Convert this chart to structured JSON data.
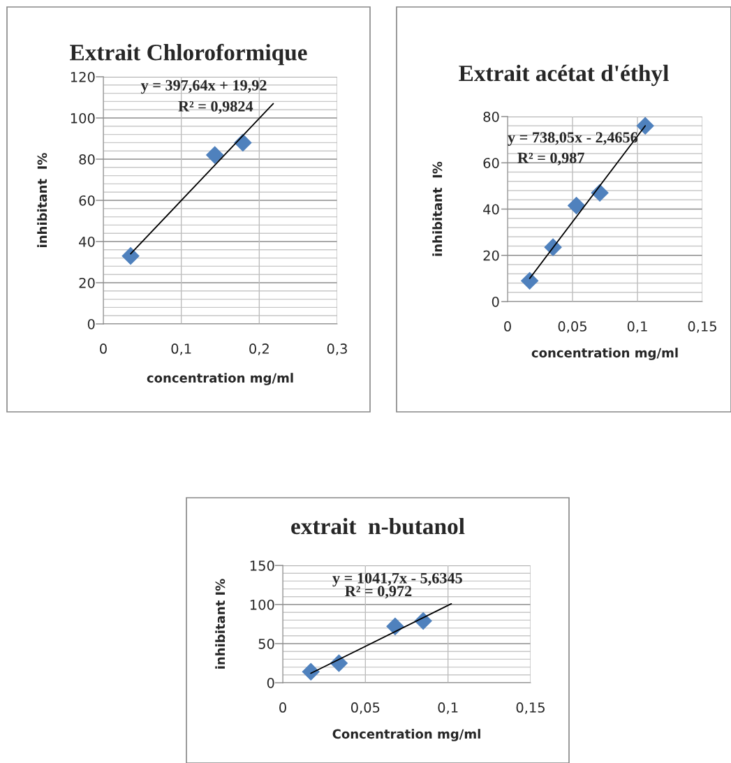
{
  "chart_data": [
    {
      "type": "scatter",
      "title": "Extrait Chloroformique",
      "xlabel": "concentration mg/ml",
      "ylabel": "inhibitant  I%",
      "xlim": [
        0,
        0.3
      ],
      "xticks": [
        0,
        {
          "value": 0.1,
          "label": "0,1"
        },
        {
          "value": 0.2,
          "label": "0,2"
        },
        {
          "value": 0.3,
          "label": "0,3"
        }
      ],
      "ylim": [
        0,
        120
      ],
      "yticks": [
        0,
        {
          "value": 4,
          "label": null
        },
        {
          "value": 8,
          "label": null
        },
        {
          "value": 12,
          "label": null
        },
        {
          "value": 16,
          "label": null
        },
        20,
        {
          "value": 24,
          "label": null
        },
        {
          "value": 28,
          "label": null
        },
        {
          "value": 32,
          "label": null
        },
        {
          "value": 36,
          "label": null
        },
        40,
        {
          "value": 44,
          "label": null
        },
        {
          "value": 48,
          "label": null
        },
        {
          "value": 52,
          "label": null
        },
        {
          "value": 56,
          "label": null
        },
        60,
        {
          "value": 64,
          "label": null
        },
        {
          "value": 68,
          "label": null
        },
        {
          "value": 72,
          "label": null
        },
        {
          "value": 76,
          "label": null
        },
        80,
        {
          "value": 84,
          "label": null
        },
        {
          "value": 88,
          "label": null
        },
        {
          "value": 92,
          "label": null
        },
        {
          "value": 96,
          "label": null
        },
        100,
        {
          "value": 104,
          "label": null
        },
        {
          "value": 108,
          "label": null
        },
        {
          "value": 112,
          "label": null
        },
        {
          "value": 116,
          "label": null
        },
        120
      ],
      "grid": true,
      "annotations": [
        "y = 397,64x + 19,92",
        "R² = 0,9824"
      ],
      "series": [
        {
          "color": "#4f81bd",
          "marker": "diamond",
          "x": [
            0.035,
            0.143,
            0.179
          ],
          "values": [
            33,
            82,
            88
          ]
        },
        {
          "type": "line",
          "color": "#000000",
          "x": [
            0.035,
            0.218
          ],
          "values": [
            34,
            107
          ]
        }
      ]
    },
    {
      "type": "scatter",
      "title": "Extrait acétat d'éthyl",
      "xlabel": "concentration mg/ml",
      "ylabel": "inhibitant  I%",
      "xlim": [
        0,
        0.15
      ],
      "xticks": [
        0,
        {
          "value": 0.05,
          "label": "0,05"
        },
        {
          "value": 0.1,
          "label": "0,1"
        },
        {
          "value": 0.15,
          "label": "0,15"
        }
      ],
      "ylim": [
        0,
        80
      ],
      "yticks": [
        0,
        {
          "value": 4,
          "label": null
        },
        {
          "value": 8,
          "label": null
        },
        {
          "value": 12,
          "label": null
        },
        {
          "value": 16,
          "label": null
        },
        20,
        {
          "value": 24,
          "label": null
        },
        {
          "value": 28,
          "label": null
        },
        {
          "value": 32,
          "label": null
        },
        {
          "value": 36,
          "label": null
        },
        40,
        {
          "value": 44,
          "label": null
        },
        {
          "value": 48,
          "label": null
        },
        {
          "value": 52,
          "label": null
        },
        {
          "value": 56,
          "label": null
        },
        60,
        {
          "value": 64,
          "label": null
        },
        {
          "value": 68,
          "label": null
        },
        {
          "value": 72,
          "label": null
        },
        {
          "value": 76,
          "label": null
        },
        80
      ],
      "grid": true,
      "annotations": [
        "y = 738,05x - 2,4656",
        "R² = 0,987"
      ],
      "series": [
        {
          "color": "#4f81bd",
          "marker": "diamond",
          "x": [
            0.017,
            0.035,
            0.053,
            0.071,
            0.106
          ],
          "values": [
            9,
            23.5,
            41.5,
            47,
            76
          ]
        },
        {
          "type": "line",
          "color": "#000000",
          "x": [
            0.017,
            0.106
          ],
          "values": [
            10,
            76
          ]
        }
      ]
    },
    {
      "type": "scatter",
      "title": "extrait  n-butanol",
      "xlabel": "Concentration mg/ml",
      "ylabel": "inhibitant I%",
      "xlim": [
        0,
        0.15
      ],
      "xticks": [
        0,
        {
          "value": 0.05,
          "label": "0,05"
        },
        {
          "value": 0.1,
          "label": "0,1"
        },
        {
          "value": 0.15,
          "label": "0,15"
        }
      ],
      "ylim": [
        0,
        150
      ],
      "yticks": [
        0,
        {
          "value": 10,
          "label": null
        },
        {
          "value": 20,
          "label": null
        },
        {
          "value": 30,
          "label": null
        },
        {
          "value": 40,
          "label": null
        },
        50,
        {
          "value": 60,
          "label": null
        },
        {
          "value": 70,
          "label": null
        },
        {
          "value": 80,
          "label": null
        },
        {
          "value": 90,
          "label": null
        },
        100,
        {
          "value": 110,
          "label": null
        },
        {
          "value": 120,
          "label": null
        },
        {
          "value": 130,
          "label": null
        },
        {
          "value": 140,
          "label": null
        },
        150
      ],
      "grid": true,
      "annotations": [
        "y = 1041,7x - 5,6345",
        "R² = 0,972"
      ],
      "series": [
        {
          "color": "#4f81bd",
          "marker": "diamond",
          "x": [
            0.017,
            0.034,
            0.068,
            0.085
          ],
          "values": [
            14,
            25,
            72,
            79
          ]
        },
        {
          "type": "line",
          "color": "#000000",
          "x": [
            0.017,
            0.102
          ],
          "values": [
            12,
            101
          ]
        }
      ]
    }
  ]
}
